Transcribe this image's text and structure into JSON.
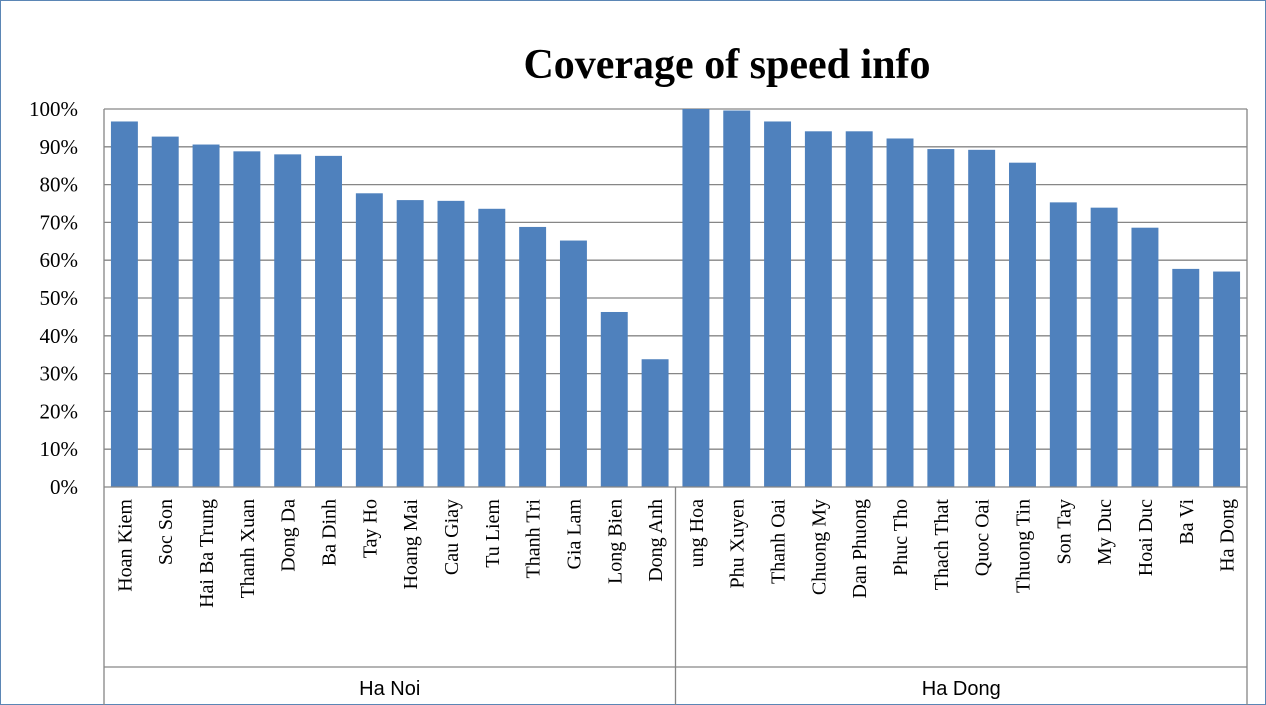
{
  "chart_data": {
    "type": "bar",
    "title": "Coverage of speed info",
    "xlabel": "",
    "ylabel": "",
    "ylim": [
      0,
      100
    ],
    "yticks": [
      0,
      10,
      20,
      30,
      40,
      50,
      60,
      70,
      80,
      90,
      100
    ],
    "ytick_labels": [
      "0%",
      "10%",
      "20%",
      "30%",
      "40%",
      "50%",
      "60%",
      "70%",
      "80%",
      "90%",
      "100%"
    ],
    "grid": true,
    "legend": "none",
    "bar_color": "#4f81bd",
    "groups": [
      {
        "name": "Ha Noi",
        "categories": [
          "Hoan Kiem",
          "Soc Son",
          "Hai Ba Trung",
          "Thanh Xuan",
          "Dong Da",
          "Ba Dinh",
          "Tay Ho",
          "Hoang Mai",
          "Cau Giay",
          "Tu Liem",
          "Thanh Tri",
          "Gia Lam",
          "Long Bien",
          "Dong Anh"
        ],
        "values": [
          96.7,
          92.7,
          90.6,
          88.8,
          88.0,
          87.6,
          77.7,
          75.9,
          75.7,
          73.6,
          68.8,
          65.2,
          46.3,
          33.8
        ]
      },
      {
        "name": "Ha Dong",
        "categories": [
          "ung Hoa",
          "Phu Xuyen",
          "Thanh Oai",
          "Chuong My",
          "Dan Phuong",
          "Phuc Tho",
          "Thach That",
          "Quoc Oai",
          "Thuong Tin",
          "Son Tay",
          "My Duc",
          "Hoai Duc",
          "Ba Vi",
          "Ha Dong"
        ],
        "values": [
          100.0,
          99.6,
          96.7,
          94.1,
          94.1,
          92.2,
          89.4,
          89.2,
          85.8,
          75.3,
          73.9,
          68.6,
          57.7,
          57.0
        ]
      }
    ]
  }
}
